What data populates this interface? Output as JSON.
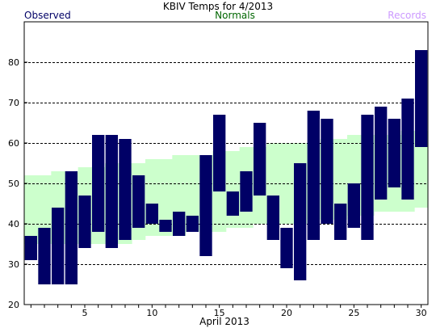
{
  "chart_data": {
    "type": "bar",
    "title": "KBIV Temps for 4/2013",
    "legend": {
      "observed": "Observed",
      "normals": "Normals",
      "records": "Records"
    },
    "xlabel": "April 2013",
    "ylabel": "",
    "xlim": [
      0.5,
      30.5
    ],
    "ylim": [
      20,
      90
    ],
    "x_ticks": [
      5,
      10,
      15,
      20,
      25,
      30
    ],
    "y_ticks": [
      20,
      30,
      40,
      50,
      60,
      70,
      80
    ],
    "grid": true,
    "colors": {
      "observed": "#000066",
      "normals": "#ccffcc",
      "observed_legend": "#000066",
      "normals_legend": "#006600",
      "records_legend": "#cc99ff"
    },
    "days": [
      1,
      2,
      3,
      4,
      5,
      6,
      7,
      8,
      9,
      10,
      11,
      12,
      13,
      14,
      15,
      16,
      17,
      18,
      19,
      20,
      21,
      22,
      23,
      24,
      25,
      26,
      27,
      28,
      29,
      30
    ],
    "observed_low": [
      31,
      25,
      25,
      25,
      34,
      38,
      34,
      36,
      39,
      40,
      38,
      37,
      38,
      32,
      48,
      42,
      43,
      47,
      36,
      29,
      26,
      36,
      40,
      36,
      39,
      36,
      46,
      49,
      46,
      59
    ],
    "observed_high": [
      37,
      39,
      44,
      53,
      47,
      62,
      62,
      61,
      52,
      45,
      41,
      43,
      42,
      57,
      67,
      48,
      53,
      65,
      47,
      39,
      55,
      68,
      66,
      45,
      50,
      67,
      69,
      66,
      71,
      83
    ],
    "normal_low": [
      35,
      35,
      35,
      35,
      35,
      35,
      35,
      35,
      36,
      37,
      37,
      37,
      38,
      38,
      38,
      39,
      39,
      40,
      40,
      40,
      40,
      41,
      41,
      41,
      42,
      42,
      43,
      43,
      43,
      44
    ],
    "normal_high": [
      52,
      52,
      53,
      53,
      54,
      54,
      55,
      55,
      55,
      56,
      56,
      57,
      57,
      57,
      58,
      58,
      59,
      59,
      60,
      60,
      60,
      60,
      61,
      61,
      62,
      62,
      62,
      62,
      63,
      63
    ]
  }
}
